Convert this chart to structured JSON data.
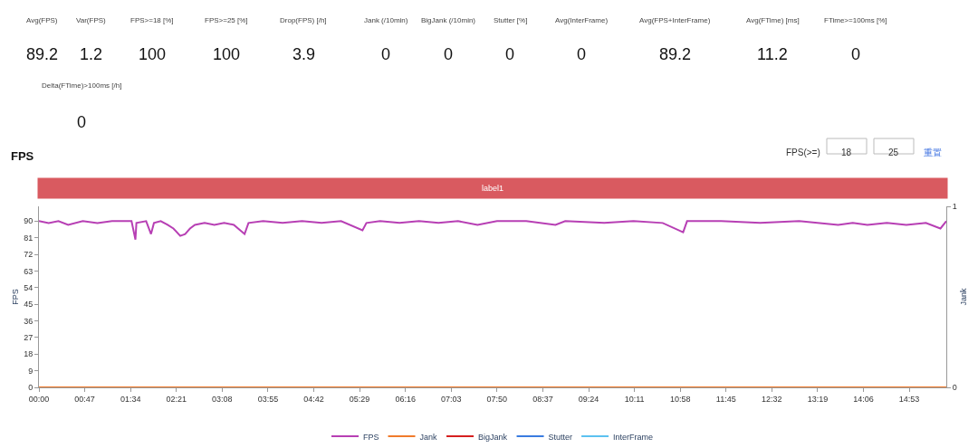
{
  "chart_data": [
    {
      "type": "other",
      "categories": [
        "Avg(FPS)",
        "Var(FPS)",
        "FPS>=18 [%]",
        "FPS>=25 [%]",
        "Drop(FPS) [/h]",
        "Jank (/10min)",
        "BigJank (/10min)",
        "Stutter [%]",
        "Avg(InterFrame)",
        "Avg(FPS+InterFrame)",
        "Avg(FTime) [ms]",
        "FTime>=100ms [%]",
        "Delta(FTime)>100ms [/h]"
      ],
      "values": [
        89.2,
        1.2,
        100,
        100,
        3.9,
        0,
        0,
        0,
        0,
        89.2,
        11.2,
        0,
        0
      ],
      "data_labels": true
    },
    {
      "type": "line",
      "title": "FPS",
      "ylabel": "FPS",
      "y2label": "Jank",
      "annotations": [
        "FPS(>=)",
        "18",
        "25",
        "重置",
        "label1"
      ],
      "xlim": [
        0,
        931
      ],
      "xticks": [
        {
          "value": 0,
          "label": "00:00"
        },
        {
          "value": 47,
          "label": "00:47"
        },
        {
          "value": 94,
          "label": "01:34"
        },
        {
          "value": 141,
          "label": "02:21"
        },
        {
          "value": 188,
          "label": "03:08"
        },
        {
          "value": 235,
          "label": "03:55"
        },
        {
          "value": 282,
          "label": "04:42"
        },
        {
          "value": 329,
          "label": "05:29"
        },
        {
          "value": 376,
          "label": "06:16"
        },
        {
          "value": 423,
          "label": "07:03"
        },
        {
          "value": 470,
          "label": "07:50"
        },
        {
          "value": 517,
          "label": "08:37"
        },
        {
          "value": 564,
          "label": "09:24"
        },
        {
          "value": 611,
          "label": "10:11"
        },
        {
          "value": 658,
          "label": "10:58"
        },
        {
          "value": 705,
          "label": "11:45"
        },
        {
          "value": 752,
          "label": "12:32"
        },
        {
          "value": 799,
          "label": "13:19"
        },
        {
          "value": 846,
          "label": "14:06"
        },
        {
          "value": 893,
          "label": "14:53"
        }
      ],
      "ylim": [
        0,
        98
      ],
      "yticks": [
        0,
        9,
        18,
        27,
        36,
        45,
        54,
        63,
        72,
        81,
        90
      ],
      "y2lim": [
        0,
        1
      ],
      "y2ticks": [
        0,
        1
      ],
      "legend": "bottom",
      "series": [
        {
          "name": "FPS",
          "color": "#b73fb4",
          "x": [
            0,
            10,
            20,
            30,
            45,
            60,
            75,
            95,
            99,
            100,
            110,
            115,
            118,
            125,
            132,
            138,
            145,
            150,
            155,
            160,
            170,
            180,
            190,
            200,
            211,
            215,
            230,
            250,
            270,
            290,
            310,
            332,
            336,
            350,
            370,
            390,
            410,
            430,
            450,
            470,
            500,
            530,
            540,
            580,
            610,
            640,
            661,
            665,
            700,
            740,
            780,
            820,
            835,
            850,
            870,
            890,
            910,
            925,
            931
          ],
          "values": [
            90,
            89,
            90,
            88,
            90,
            89,
            90,
            90,
            80,
            89,
            90,
            83,
            89,
            90,
            88,
            86,
            82,
            83,
            86,
            88,
            89,
            88,
            89,
            88,
            83,
            89,
            90,
            89,
            90,
            89,
            90,
            85,
            89,
            90,
            89,
            90,
            89,
            90,
            88,
            90,
            90,
            88,
            90,
            89,
            90,
            89,
            84,
            90,
            90,
            89,
            90,
            88,
            89,
            88,
            89,
            88,
            89,
            86,
            90
          ]
        },
        {
          "name": "Jank",
          "color": "#f07b2c",
          "axis": "y2",
          "x": [
            0,
            931
          ],
          "values": [
            0,
            0
          ]
        },
        {
          "name": "BigJank",
          "color": "#d62020",
          "axis": "y2"
        },
        {
          "name": "Stutter",
          "color": "#3a7ce0",
          "axis": "y2"
        },
        {
          "name": "InterFrame",
          "color": "#5cc2f0",
          "axis": "y2"
        }
      ]
    }
  ]
}
